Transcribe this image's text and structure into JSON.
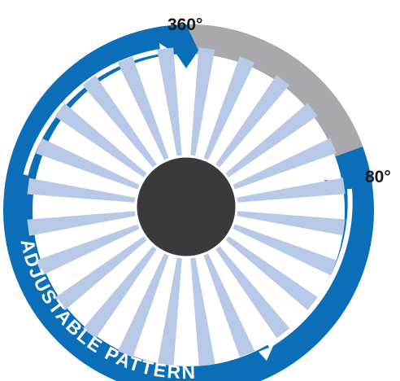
{
  "labels": {
    "top_angle": "360°",
    "right_angle": "80°",
    "ring_text": "ADJUSTABLE PATTERN"
  },
  "icons": {
    "hub": "center-hub-icon",
    "spokes": "spray-spokes-icon",
    "arrow": "arrowhead-icon"
  },
  "colors": {
    "ring_blue": "#0a6fb8",
    "excluded_gray": "#a7a9ac",
    "spoke_blue": "#b8c9e8",
    "hub": "#3a3a3c",
    "label_text": "#1a1a1a",
    "ring_text": "#ffffff"
  }
}
